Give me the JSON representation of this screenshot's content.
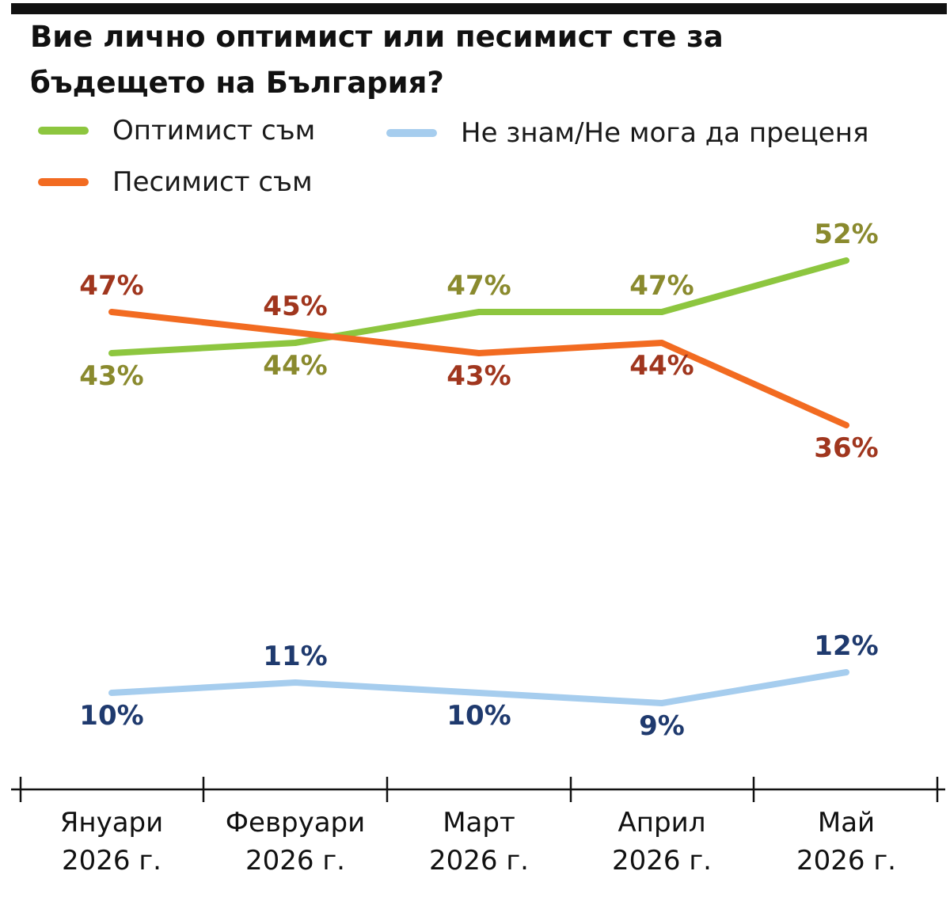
{
  "title": "Вие лично оптимист или песимист сте за бъдещето на България?",
  "chart_data": {
    "type": "line",
    "title": "Вие лично оптимист или песимист сте за бъдещето на България?",
    "categories": [
      [
        "Януари",
        "2026 г."
      ],
      [
        "Февруари",
        "2026 г."
      ],
      [
        "Март",
        "2026 г."
      ],
      [
        "Април",
        "2026 г."
      ],
      [
        "Май",
        "2026 г."
      ]
    ],
    "series": [
      {
        "name": "Оптимист съм",
        "values": [
          43,
          44,
          47,
          47,
          52
        ],
        "labels": [
          "43%",
          "44%",
          "47%",
          "47%",
          "52%"
        ],
        "color": "#8dc63f",
        "label_color": "#8a8a2e"
      },
      {
        "name": "Песимист съм",
        "values": [
          47,
          45,
          43,
          44,
          36
        ],
        "labels": [
          "47%",
          "45%",
          "43%",
          "44%",
          "36%"
        ],
        "color": "#f26b21",
        "label_color": "#a0361e"
      },
      {
        "name": "Не знам/Не мога да преценя",
        "values": [
          10,
          11,
          10,
          9,
          12
        ],
        "labels": [
          "10%",
          "11%",
          "10%",
          "9%",
          "12%"
        ],
        "color": "#a6cdee",
        "label_color": "#1f3a6e"
      }
    ],
    "ylim": [
      0,
      60
    ],
    "grid": false,
    "legend": "top-left",
    "xlabel": "",
    "ylabel": ""
  }
}
